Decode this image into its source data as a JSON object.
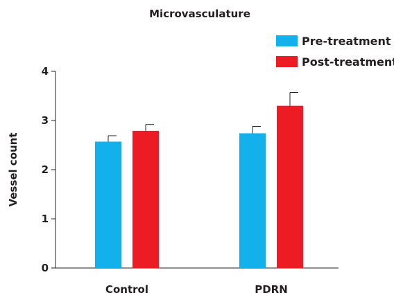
{
  "chart_data": {
    "type": "bar",
    "title": "Microvasculature",
    "xlabel": "",
    "ylabel": "Vessel count",
    "categories": [
      "Control",
      "PDRN"
    ],
    "series": [
      {
        "name": "Pre-treatment",
        "color": "#13b1ec",
        "values": [
          2.57,
          2.74
        ],
        "errors": [
          0.12,
          0.14
        ]
      },
      {
        "name": "Post-treatment",
        "color": "#ed1c24",
        "values": [
          2.79,
          3.3
        ],
        "errors": [
          0.13,
          0.27
        ]
      }
    ],
    "ylim": [
      0,
      4
    ],
    "yticks": [
      "0",
      "1",
      "2",
      "3",
      "4"
    ],
    "grid": false,
    "legend_position": "top-right"
  }
}
